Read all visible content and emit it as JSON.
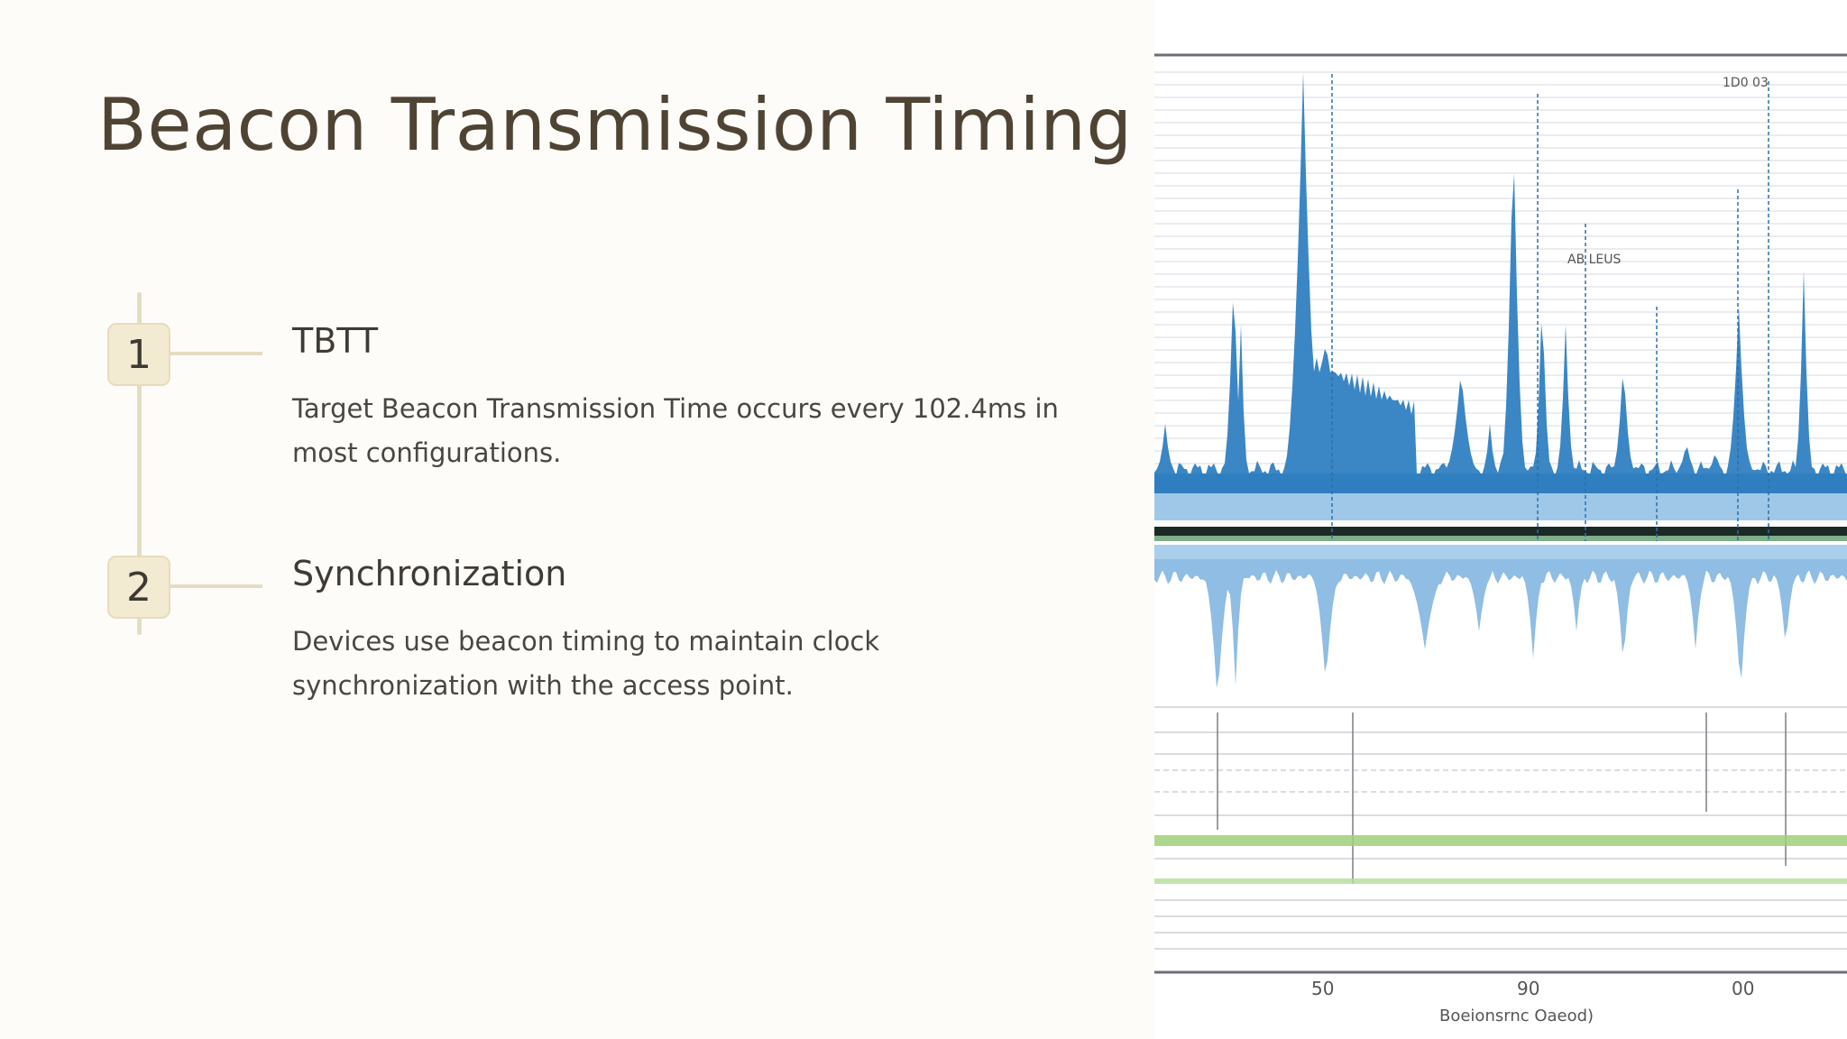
{
  "slide": {
    "title": "Beacon Transmission Timing",
    "steps": [
      {
        "number": "1",
        "heading": "TBTT",
        "text": "Target Beacon Transmission Time occurs every 102.4ms in most configurations."
      },
      {
        "number": "2",
        "heading": "Synchronization",
        "text": "Devices use beacon timing to maintain clock synchronization with the access point."
      }
    ]
  },
  "figure": {
    "tick_labels": [
      "50",
      "90",
      "00"
    ],
    "xlabel": "Boeionsrnc Oaeod)",
    "annotations": [
      "1D0 03",
      "AB LEUS"
    ],
    "colors": {
      "signal": "#3b86c4",
      "signal_light": "#8fbde3",
      "band": "#8cc96a",
      "grid": "#c9cdd3",
      "frame": "#6b6f75"
    }
  }
}
